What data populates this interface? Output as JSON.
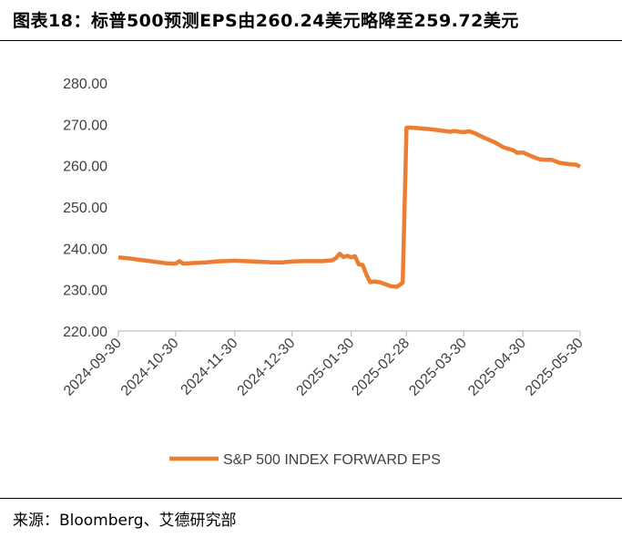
{
  "header": {
    "title": "图表18：标普500预测EPS由260.24美元略降至259.72美元"
  },
  "footer": {
    "source": "来源：Bloomberg、艾德研究部"
  },
  "colors": {
    "series": "#ED7D31",
    "axis": "#BFBFBF",
    "text": "#404040"
  },
  "chart_data": {
    "type": "line",
    "title": "",
    "xlabel": "",
    "ylabel": "",
    "ylim": [
      220,
      280
    ],
    "yticks": [
      "220.00",
      "230.00",
      "240.00",
      "250.00",
      "260.00",
      "270.00",
      "280.00"
    ],
    "xticks": [
      "2024-09-30",
      "2024-10-30",
      "2024-11-30",
      "2024-12-30",
      "2025-01-30",
      "2025-02-28",
      "2025-03-30",
      "2025-04-30",
      "2025-05-30"
    ],
    "grid": false,
    "legend": "bottom",
    "series": [
      {
        "name": "S&P 500 INDEX FORWARD EPS",
        "points": [
          [
            "2024-09-30",
            237.8
          ],
          [
            "2024-10-05",
            237.6
          ],
          [
            "2024-10-10",
            237.3
          ],
          [
            "2024-10-15",
            237.0
          ],
          [
            "2024-10-20",
            236.7
          ],
          [
            "2024-10-25",
            236.4
          ],
          [
            "2024-10-30",
            236.3
          ],
          [
            "2024-11-01",
            236.9
          ],
          [
            "2024-11-03",
            236.3
          ],
          [
            "2024-11-10",
            236.5
          ],
          [
            "2024-11-15",
            236.6
          ],
          [
            "2024-11-20",
            236.8
          ],
          [
            "2024-11-25",
            236.9
          ],
          [
            "2024-11-30",
            237.0
          ],
          [
            "2024-12-05",
            236.9
          ],
          [
            "2024-12-10",
            236.8
          ],
          [
            "2024-12-15",
            236.7
          ],
          [
            "2024-12-20",
            236.6
          ],
          [
            "2024-12-25",
            236.6
          ],
          [
            "2024-12-30",
            236.8
          ],
          [
            "2025-01-05",
            236.9
          ],
          [
            "2025-01-10",
            236.9
          ],
          [
            "2025-01-15",
            236.9
          ],
          [
            "2025-01-20",
            237.1
          ],
          [
            "2025-01-22",
            237.6
          ],
          [
            "2025-01-24",
            238.7
          ],
          [
            "2025-01-26",
            237.9
          ],
          [
            "2025-01-28",
            238.2
          ],
          [
            "2025-01-30",
            237.8
          ],
          [
            "2025-02-01",
            238.1
          ],
          [
            "2025-02-03",
            236.1
          ],
          [
            "2025-02-05",
            236.0
          ],
          [
            "2025-02-07",
            233.6
          ],
          [
            "2025-02-09",
            231.8
          ],
          [
            "2025-02-11",
            232.0
          ],
          [
            "2025-02-14",
            231.8
          ],
          [
            "2025-02-17",
            231.3
          ],
          [
            "2025-02-20",
            230.8
          ],
          [
            "2025-02-23",
            230.7
          ],
          [
            "2025-02-26",
            231.7
          ],
          [
            "2025-02-28",
            269.2
          ],
          [
            "2025-03-03",
            269.2
          ],
          [
            "2025-03-08",
            269.0
          ],
          [
            "2025-03-13",
            268.8
          ],
          [
            "2025-03-18",
            268.5
          ],
          [
            "2025-03-23",
            268.2
          ],
          [
            "2025-03-25",
            268.4
          ],
          [
            "2025-03-28",
            268.2
          ],
          [
            "2025-03-30",
            268.1
          ],
          [
            "2025-04-02",
            268.3
          ],
          [
            "2025-04-05",
            267.8
          ],
          [
            "2025-04-10",
            266.7
          ],
          [
            "2025-04-15",
            265.7
          ],
          [
            "2025-04-20",
            264.4
          ],
          [
            "2025-04-25",
            263.7
          ],
          [
            "2025-04-27",
            263.1
          ],
          [
            "2025-04-30",
            263.2
          ],
          [
            "2025-05-03",
            262.6
          ],
          [
            "2025-05-06",
            262.0
          ],
          [
            "2025-05-09",
            261.5
          ],
          [
            "2025-05-12",
            261.4
          ],
          [
            "2025-05-15",
            261.4
          ],
          [
            "2025-05-17",
            261.1
          ],
          [
            "2025-05-19",
            260.7
          ],
          [
            "2025-05-22",
            260.5
          ],
          [
            "2025-05-25",
            260.3
          ],
          [
            "2025-05-28",
            260.24
          ],
          [
            "2025-05-30",
            259.72
          ]
        ]
      }
    ]
  }
}
